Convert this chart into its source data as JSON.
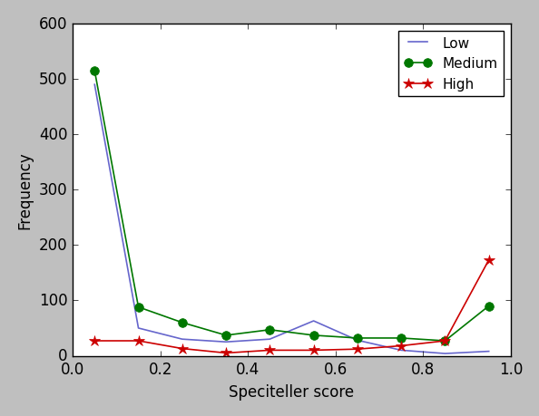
{
  "title": "",
  "xlabel": "Speciteller score",
  "ylabel": "Frequency",
  "xlim": [
    0.0,
    1.0
  ],
  "ylim": [
    0,
    600
  ],
  "yticks": [
    0,
    100,
    200,
    300,
    400,
    500,
    600
  ],
  "xticks": [
    0.0,
    0.2,
    0.4,
    0.6,
    0.8,
    1.0
  ],
  "low_x": [
    0.05,
    0.15,
    0.25,
    0.35,
    0.45,
    0.55,
    0.65,
    0.75,
    0.85,
    0.95
  ],
  "low_y": [
    490,
    50,
    30,
    25,
    30,
    63,
    28,
    10,
    4,
    8
  ],
  "low_color": "#6666cc",
  "low_label": "Low",
  "medium_x": [
    0.05,
    0.15,
    0.25,
    0.35,
    0.45,
    0.55,
    0.65,
    0.75,
    0.85,
    0.95
  ],
  "medium_y": [
    515,
    88,
    60,
    37,
    47,
    37,
    32,
    32,
    27,
    90
  ],
  "medium_color": "#007700",
  "medium_label": "Medium",
  "medium_marker": "o",
  "high_x": [
    0.05,
    0.15,
    0.25,
    0.35,
    0.45,
    0.55,
    0.65,
    0.75,
    0.85,
    0.95
  ],
  "high_y": [
    27,
    27,
    13,
    5,
    10,
    10,
    12,
    18,
    27,
    173
  ],
  "high_color": "#cc0000",
  "high_label": "High",
  "high_marker": "*",
  "figsize": [
    5.94,
    4.6
  ],
  "dpi": 100
}
